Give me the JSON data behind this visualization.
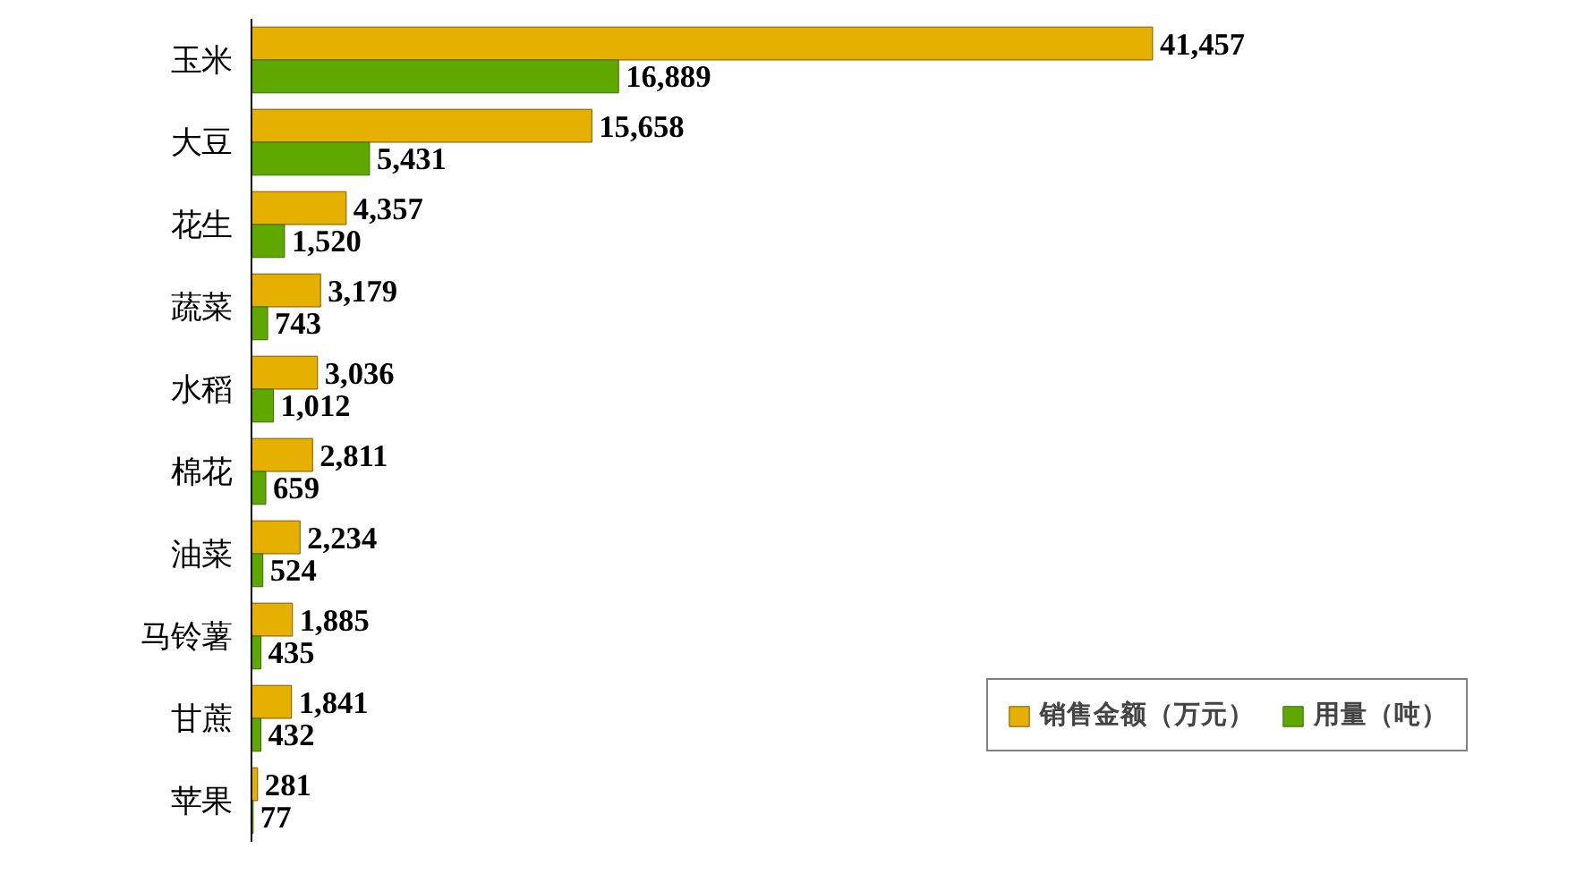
{
  "chart_data": {
    "type": "bar",
    "orientation": "horizontal",
    "categories": [
      "玉米",
      "大豆",
      "花生",
      "蔬菜",
      "水稻",
      "棉花",
      "油菜",
      "马铃薯",
      "甘蔗",
      "苹果"
    ],
    "series": [
      {
        "name": "销售金额（万元）",
        "color": "#e6b000",
        "values": [
          41457,
          15658,
          4357,
          3179,
          3036,
          2811,
          2234,
          1885,
          1841,
          281
        ],
        "value_labels": [
          "41,457",
          "15,658",
          "4,357",
          "3,179",
          "3,036",
          "2,811",
          "2,234",
          "1,885",
          "1,841",
          "281"
        ]
      },
      {
        "name": "用量（吨）",
        "color": "#5fa800",
        "values": [
          16889,
          5431,
          1520,
          743,
          1012,
          659,
          524,
          435,
          432,
          77
        ],
        "value_labels": [
          "16,889",
          "5,431",
          "1,520",
          "743",
          "1,012",
          "659",
          "524",
          "435",
          "432",
          "77"
        ]
      }
    ],
    "legend": "bottom right",
    "grid": false
  }
}
